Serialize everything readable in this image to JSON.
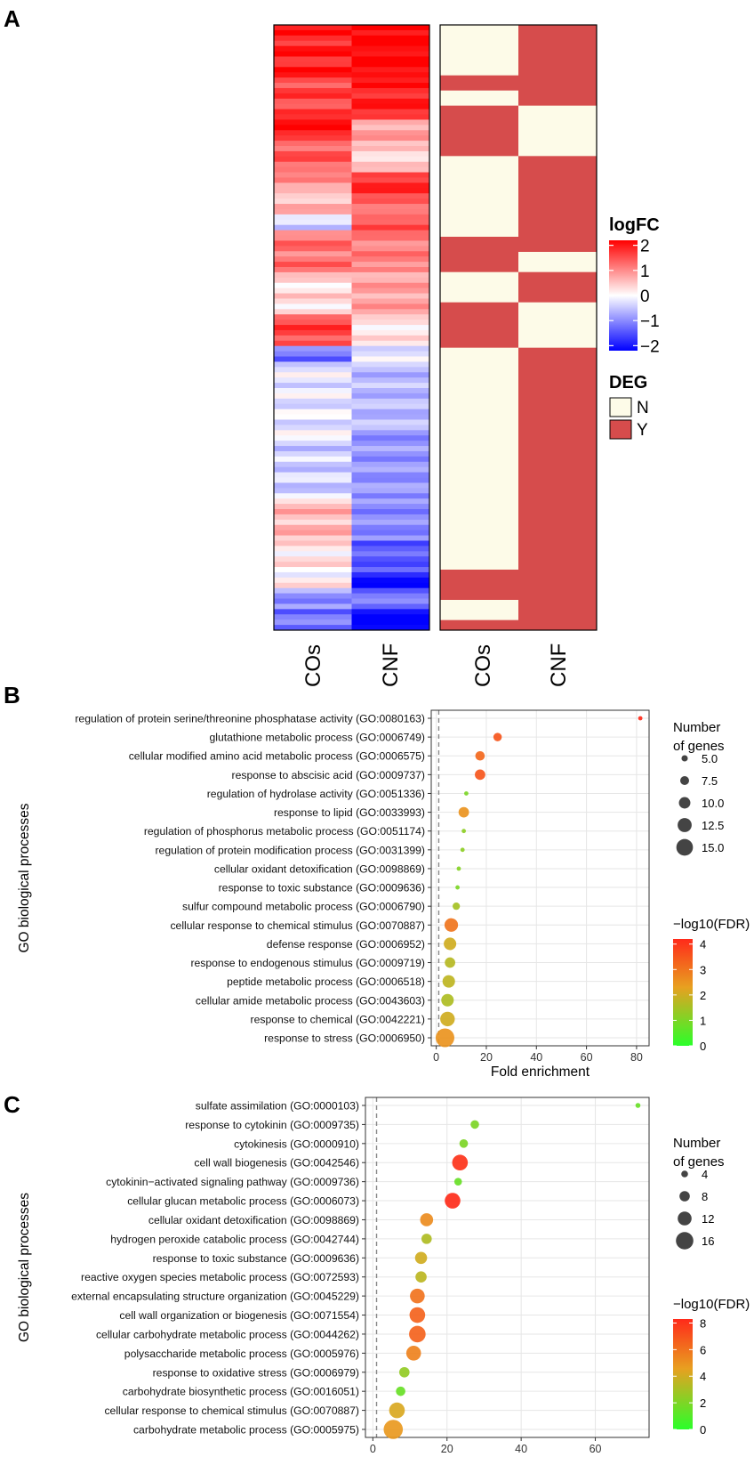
{
  "panels": {
    "a": {
      "letter": "A"
    },
    "b": {
      "letter": "B"
    },
    "c": {
      "letter": "C"
    }
  },
  "colors": {
    "heat_high": "#ff0000",
    "heat_mid": "#ffffff",
    "heat_low": "#0000ff",
    "deg_n": "#fdfbe8",
    "deg_y": "#d64c4c",
    "grad_high": "#ff2a1a",
    "grad_mid": "#e8a020",
    "grad_low": "#2aff2a",
    "bubble_edge": "none",
    "grid": "#e6e6e6",
    "dashed": "#888888"
  },
  "chart_data": [
    {
      "type": "heatmap",
      "id": "A",
      "title": "",
      "columns": [
        "COs",
        "CNF",
        "COs",
        "CNF"
      ],
      "blocks": [
        {
          "name": "logFC",
          "columns": [
            "COs",
            "CNF"
          ],
          "rows_approx": 120,
          "segments": [
            {
              "rows": 10,
              "COs": 1.9,
              "CNF": 2.2
            },
            {
              "rows": 8,
              "COs": 1.6,
              "CNF": 1.9
            },
            {
              "rows": 4,
              "COs": 2.0,
              "CNF": 0.8
            },
            {
              "rows": 6,
              "COs": 1.4,
              "CNF": 0.4
            },
            {
              "rows": 4,
              "COs": 0.9,
              "CNF": 1.8
            },
            {
              "rows": 4,
              "COs": 0.6,
              "CNF": 1.3
            },
            {
              "rows": 3,
              "COs": -0.4,
              "CNF": 1.5
            },
            {
              "rows": 8,
              "COs": 1.2,
              "CNF": 1.1
            },
            {
              "rows": 8,
              "COs": 0.3,
              "CNF": 0.8
            },
            {
              "rows": 6,
              "COs": 1.6,
              "CNF": 0.2
            },
            {
              "rows": 3,
              "COs": -1.2,
              "CNF": -0.2
            },
            {
              "rows": 14,
              "COs": -0.2,
              "CNF": -0.6
            },
            {
              "rows": 12,
              "COs": -0.4,
              "CNF": -0.9
            },
            {
              "rows": 8,
              "COs": 0.6,
              "CNF": -1.0
            },
            {
              "rows": 6,
              "COs": 0.2,
              "CNF": -1.4
            },
            {
              "rows": 3,
              "COs": 0.1,
              "CNF": -2.1
            },
            {
              "rows": 4,
              "COs": -0.9,
              "CNF": -1.2
            },
            {
              "rows": 4,
              "COs": -1.2,
              "CNF": -2.3
            }
          ]
        },
        {
          "name": "DEG",
          "columns": [
            "COs",
            "CNF"
          ],
          "rows_approx": 120,
          "segments": [
            {
              "rows": 10,
              "COs": "N",
              "CNF": "Y"
            },
            {
              "rows": 3,
              "COs": "Y",
              "CNF": "Y"
            },
            {
              "rows": 3,
              "COs": "N",
              "CNF": "Y"
            },
            {
              "rows": 2,
              "COs": "Y",
              "CNF": "N"
            },
            {
              "rows": 8,
              "COs": "Y",
              "CNF": "N"
            },
            {
              "rows": 8,
              "COs": "N",
              "CNF": "Y"
            },
            {
              "rows": 8,
              "COs": "N",
              "CNF": "Y"
            },
            {
              "rows": 3,
              "COs": "Y",
              "CNF": "Y"
            },
            {
              "rows": 4,
              "COs": "Y",
              "CNF": "N"
            },
            {
              "rows": 6,
              "COs": "N",
              "CNF": "Y"
            },
            {
              "rows": 9,
              "COs": "Y",
              "CNF": "N"
            },
            {
              "rows": 18,
              "COs": "N",
              "CNF": "Y"
            },
            {
              "rows": 26,
              "COs": "N",
              "CNF": "Y"
            },
            {
              "rows": 6,
              "COs": "Y",
              "CNF": "Y"
            },
            {
              "rows": 4,
              "COs": "N",
              "CNF": "Y"
            },
            {
              "rows": 2,
              "COs": "Y",
              "CNF": "Y"
            }
          ]
        }
      ],
      "legend_logfc": {
        "title": "logFC",
        "ticks": [
          "2",
          "1",
          "0",
          "−1",
          "−2"
        ],
        "range": [
          -2.2,
          2.2
        ]
      },
      "legend_deg": {
        "title": "DEG",
        "entries": [
          "N",
          "Y"
        ]
      }
    },
    {
      "type": "scatter",
      "id": "B",
      "title": "",
      "xlabel": "Fold enrichment",
      "ylabel": "GO biological processes",
      "xlim": [
        -2,
        85
      ],
      "xticks": [
        "0",
        "20",
        "40",
        "60",
        "80"
      ],
      "xtick_values": [
        0,
        20,
        40,
        60,
        80
      ],
      "reference_line": 1,
      "categories": [
        "regulation of protein serine/threonine phosphatase activity (GO:0080163)",
        "glutathione metabolic process (GO:0006749)",
        "cellular modified amino acid metabolic process (GO:0006575)",
        "response to abscisic acid (GO:0009737)",
        "regulation of hydrolase activity (GO:0051336)",
        "response to lipid (GO:0033993)",
        "regulation of phosphorus metabolic process (GO:0051174)",
        "regulation of protein modification process (GO:0031399)",
        "cellular oxidant detoxification (GO:0098869)",
        "response to toxic substance (GO:0009636)",
        "sulfur compound metabolic process (GO:0006790)",
        "cellular response to chemical stimulus (GO:0070887)",
        "defense response (GO:0006952)",
        "response to endogenous stimulus (GO:0009719)",
        "peptide metabolic process (GO:0006518)",
        "cellular amide metabolic process (GO:0043603)",
        "response to chemical (GO:0042221)",
        "response to stress (GO:0006950)"
      ],
      "fold_enrichment": [
        81.5,
        24.5,
        17.5,
        17.5,
        12,
        11,
        11,
        10.5,
        9,
        8.5,
        8,
        6,
        5.5,
        5.5,
        5,
        4.5,
        4.5,
        3.5
      ],
      "gene_count": [
        3,
        7,
        8,
        9,
        3,
        9,
        3,
        3,
        3,
        3,
        6,
        12,
        11,
        9,
        11,
        11,
        13,
        17
      ],
      "neg_log10_fdr": [
        4.2,
        3.5,
        3.2,
        3.5,
        1.0,
        2.5,
        1.2,
        1.2,
        1.1,
        1.0,
        1.5,
        3.0,
        2.0,
        1.7,
        1.8,
        1.6,
        2.0,
        2.5
      ],
      "size_legend": {
        "title": [
          "Number",
          "of genes"
        ],
        "values": [
          "5.0",
          "7.5",
          "10.0",
          "12.5",
          "15.0"
        ],
        "numeric": [
          5,
          7.5,
          10,
          12.5,
          15
        ],
        "domain": [
          3,
          17
        ]
      },
      "color_legend": {
        "title": "−log10(FDR)",
        "ticks": [
          "4",
          "3",
          "2",
          "1",
          "0"
        ],
        "tick_values": [
          4,
          3,
          2,
          1,
          0
        ],
        "range": [
          0,
          4.2
        ]
      }
    },
    {
      "type": "scatter",
      "id": "C",
      "title": "",
      "xlabel": "Fold enrichment",
      "ylabel": "GO biological processes",
      "xlim": [
        -2,
        74.5
      ],
      "xticks": [
        "0",
        "20",
        "40",
        "60"
      ],
      "xtick_values": [
        0,
        20,
        40,
        60
      ],
      "reference_line": 1,
      "categories": [
        "sulfate assimilation (GO:0000103)",
        "response to cytokinin (GO:0009735)",
        "cytokinesis (GO:0000910)",
        "cell wall biogenesis (GO:0042546)",
        "cytokinin−activated signaling pathway (GO:0009736)",
        "cellular glucan metabolic process (GO:0006073)",
        "cellular oxidant detoxification (GO:0098869)",
        "hydrogen peroxide catabolic process (GO:0042744)",
        "response to toxic substance (GO:0009636)",
        "reactive oxygen species metabolic process (GO:0072593)",
        "external encapsulating structure organization (GO:0045229)",
        "cell wall organization or biogenesis (GO:0071554)",
        "cellular carbohydrate metabolic process (GO:0044262)",
        "polysaccharide metabolic process (GO:0005976)",
        "response to oxidative stress (GO:0006979)",
        "carbohydrate biosynthetic process (GO:0016051)",
        "cellular response to chemical stimulus (GO:0070887)",
        "carbohydrate metabolic process (GO:0005975)"
      ],
      "fold_enrichment": [
        71.5,
        27.5,
        24.5,
        23.5,
        23,
        21.5,
        14.5,
        14.5,
        13,
        13,
        12,
        12,
        12,
        11,
        8.5,
        7.5,
        6.5,
        5.5
      ],
      "gene_count": [
        2,
        6,
        6,
        14,
        5,
        14,
        11,
        8,
        10,
        9,
        13,
        14,
        15,
        13,
        8,
        7,
        14,
        18
      ],
      "neg_log10_fdr": [
        1.5,
        2.0,
        2.0,
        8.0,
        1.5,
        8.2,
        5.2,
        3.2,
        4.0,
        3.5,
        6.0,
        6.5,
        6.5,
        5.5,
        2.5,
        1.5,
        4.2,
        4.8
      ],
      "size_legend": {
        "title": [
          "Number",
          "of genes"
        ],
        "values": [
          "4",
          "8",
          "12",
          "16"
        ],
        "numeric": [
          4,
          8,
          12,
          16
        ],
        "domain": [
          2,
          18
        ]
      },
      "color_legend": {
        "title": "−log10(FDR)",
        "ticks": [
          "8",
          "6",
          "4",
          "2",
          "0"
        ],
        "tick_values": [
          8,
          6,
          4,
          2,
          0
        ],
        "range": [
          0,
          8.3
        ]
      }
    }
  ]
}
